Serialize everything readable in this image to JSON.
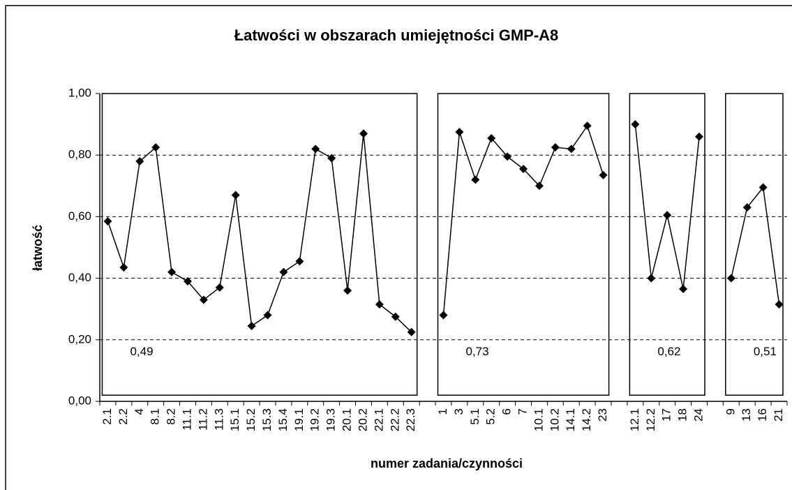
{
  "chart_data": {
    "type": "line",
    "title": "Łatwości w obszarach umiejętności GMP-A8",
    "xlabel": "numer zadania/czynności",
    "ylabel": "łatwość",
    "categories": [
      "2.1",
      "2.2",
      "4",
      "8.1",
      "8.2",
      "11.1",
      "11.2",
      "11.3",
      "15.1",
      "15.2",
      "15.3",
      "15.4",
      "19.1",
      "19.2",
      "19.3",
      "20.1",
      "20.2",
      "22.1",
      "22.2",
      "22.3",
      null,
      "1",
      "3",
      "5.1",
      "5.2",
      "6",
      "7",
      "10.1",
      "10.2",
      "14.1",
      "14.2",
      "23",
      null,
      "12.1",
      "12.2",
      "17",
      "18",
      "24",
      null,
      "9",
      "13",
      "16",
      "21"
    ],
    "values": [
      0.585,
      0.435,
      0.78,
      0.825,
      0.42,
      0.39,
      0.33,
      0.37,
      0.67,
      0.245,
      0.28,
      0.42,
      0.455,
      0.82,
      0.79,
      0.36,
      0.87,
      0.315,
      0.275,
      0.225,
      null,
      0.28,
      0.875,
      0.72,
      0.855,
      0.795,
      0.755,
      0.7,
      0.825,
      0.82,
      0.895,
      0.735,
      null,
      0.9,
      0.4,
      0.605,
      0.365,
      0.86,
      null,
      0.4,
      0.63,
      0.695,
      0.315
    ],
    "color": "#000000",
    "area_means": [
      0.49,
      0.73,
      0.62,
      0.51
    ],
    "area_mean_labels": [
      "0,49",
      "0,73",
      "0,62",
      "0,51"
    ],
    "ylim": [
      0,
      1
    ],
    "yticks": [
      {
        "value": 0,
        "label": "0,00"
      },
      {
        "value": 0.2,
        "label": "0,20"
      },
      {
        "value": 0.4,
        "label": "0,40"
      },
      {
        "value": 0.6,
        "label": "0,60"
      },
      {
        "value": 0.8,
        "label": "0,80"
      },
      {
        "value": 1,
        "label": "1,00"
      }
    ],
    "grid": true
  }
}
